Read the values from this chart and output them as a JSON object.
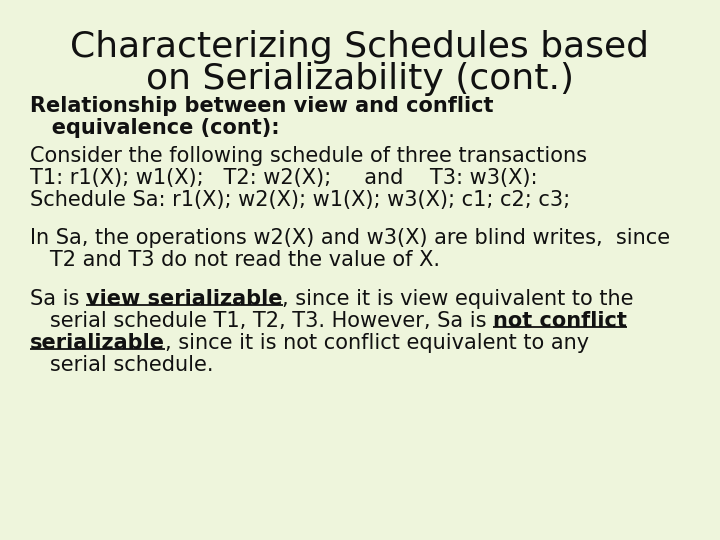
{
  "title_line1": "Characterizing Schedules based",
  "title_line2": "on Serializability (cont.)",
  "bg_color": "#eef5dc",
  "text_color": "#111111",
  "title_fontsize": 26,
  "body_fontsize": 15.0,
  "heading_bold_line1": "Relationship between view and conflict",
  "heading_bold_line2": "   equivalence (cont):",
  "line1": "Consider the following schedule of three transactions",
  "line2": "T1: r1(X); w1(X);   T2: w2(X);     and    T3: w3(X):",
  "line3": "Schedule Sa: r1(X); w2(X); w1(X); w3(X); c1; c2; c3;",
  "line4": "In Sa, the operations w2(X) and w3(X) are blind writes,  since",
  "line5": "   T2 and T3 do not read the value of X.",
  "prefix6": "Sa is ",
  "ul6": "view serializable",
  "suffix6": ", since it is view equivalent to the",
  "prefix7": "   serial schedule T1, T2, T3. However, Sa is ",
  "ul7": "not conflict",
  "ul8": "serializable",
  "suffix8": ", since it is not conflict equivalent to any",
  "line9": "   serial schedule."
}
